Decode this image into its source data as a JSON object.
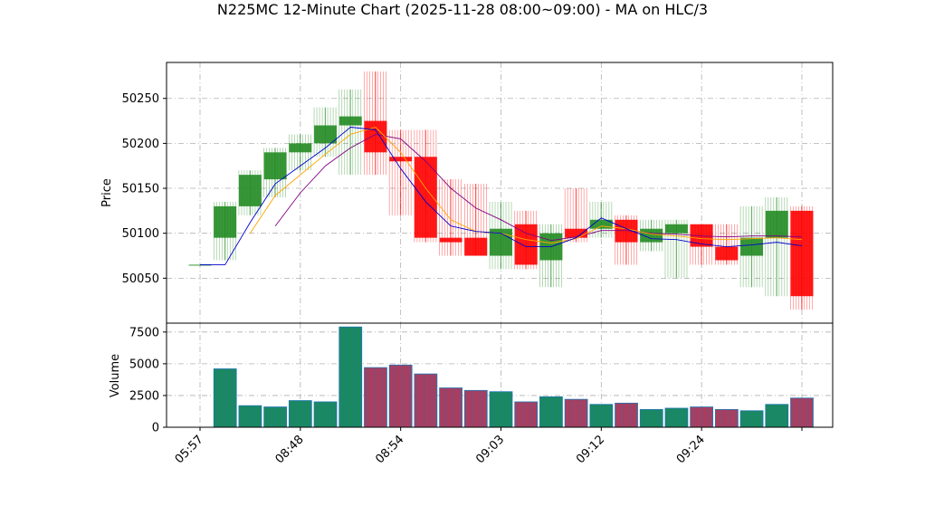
{
  "chart_data": {
    "type": "candlestick",
    "title": "N225MC 12-Minute Chart (2025-11-28 08:00~09:00) - MA on HLC/3",
    "price_panel": {
      "ylabel": "Price",
      "ylim": [
        50000,
        50290
      ],
      "yticks": [
        50050,
        50100,
        50150,
        50200,
        50250
      ]
    },
    "volume_panel": {
      "ylabel": "Volume",
      "ylim": [
        0,
        8200
      ],
      "yticks": [
        0,
        2500,
        5000,
        7500
      ],
      "yticklabels": [
        "0",
        "2500",
        "5000",
        "7500"
      ]
    },
    "xtick_labels": [
      "05:57",
      "08:48",
      "08:54",
      "09:03",
      "09:12",
      "09:24"
    ],
    "grid": true,
    "colors": {
      "up": "#228B22",
      "down": "#FF0000",
      "volume_edge": "#1f77b4",
      "ma_short": "#0000CD",
      "ma_mid": "#FFA500",
      "ma_long": "#800080",
      "grid": "#b0b0b0"
    },
    "candles": [
      {
        "open": 50065,
        "high": 50065,
        "low": 50065,
        "close": 50065,
        "volume": 0
      },
      {
        "open": 50095,
        "high": 50135,
        "low": 50070,
        "close": 50130,
        "volume": 4600
      },
      {
        "open": 50130,
        "high": 50170,
        "low": 50120,
        "close": 50165,
        "volume": 1700
      },
      {
        "open": 50160,
        "high": 50195,
        "low": 50140,
        "close": 50190,
        "volume": 1600
      },
      {
        "open": 50190,
        "high": 50210,
        "low": 50170,
        "close": 50200,
        "volume": 2100
      },
      {
        "open": 50200,
        "high": 50240,
        "low": 50185,
        "close": 50220,
        "volume": 2000
      },
      {
        "open": 50220,
        "high": 50260,
        "low": 50165,
        "close": 50230,
        "volume": 7900
      },
      {
        "open": 50225,
        "high": 50280,
        "low": 50165,
        "close": 50190,
        "volume": 4700
      },
      {
        "open": 50185,
        "high": 50215,
        "low": 50120,
        "close": 50180,
        "volume": 4900
      },
      {
        "open": 50185,
        "high": 50215,
        "low": 50090,
        "close": 50095,
        "volume": 4200
      },
      {
        "open": 50095,
        "high": 50160,
        "low": 50075,
        "close": 50090,
        "volume": 3100
      },
      {
        "open": 50095,
        "high": 50155,
        "low": 50075,
        "close": 50075,
        "volume": 2900
      },
      {
        "open": 50075,
        "high": 50135,
        "low": 50060,
        "close": 50105,
        "volume": 2800
      },
      {
        "open": 50110,
        "high": 50125,
        "low": 50060,
        "close": 50065,
        "volume": 2000
      },
      {
        "open": 50070,
        "high": 50110,
        "low": 50040,
        "close": 50100,
        "volume": 2400
      },
      {
        "open": 50105,
        "high": 50150,
        "low": 50090,
        "close": 50095,
        "volume": 2200
      },
      {
        "open": 50105,
        "high": 50135,
        "low": 50095,
        "close": 50115,
        "volume": 1800
      },
      {
        "open": 50115,
        "high": 50120,
        "low": 50065,
        "close": 50090,
        "volume": 1900
      },
      {
        "open": 50090,
        "high": 50115,
        "low": 50080,
        "close": 50105,
        "volume": 1400
      },
      {
        "open": 50100,
        "high": 50115,
        "low": 50050,
        "close": 50110,
        "volume": 1500
      },
      {
        "open": 50110,
        "high": 50110,
        "low": 50065,
        "close": 50085,
        "volume": 1600
      },
      {
        "open": 50085,
        "high": 50110,
        "low": 50065,
        "close": 50070,
        "volume": 1400
      },
      {
        "open": 50075,
        "high": 50130,
        "low": 50040,
        "close": 50095,
        "volume": 1300
      },
      {
        "open": 50095,
        "high": 50140,
        "low": 50030,
        "close": 50125,
        "volume": 1800
      },
      {
        "open": 50125,
        "high": 50130,
        "low": 50015,
        "close": 50030,
        "volume": 2300
      }
    ],
    "ma_short": [
      50065,
      50065,
      50112,
      50155,
      50175,
      50195,
      50218,
      50215,
      50172,
      50135,
      50108,
      50102,
      50100,
      50085,
      50085,
      50095,
      50117,
      50105,
      50094,
      50093,
      50088,
      50085,
      50087,
      50090,
      50086
    ],
    "ma_mid": [
      null,
      null,
      50100,
      50142,
      50165,
      50188,
      50210,
      50218,
      50190,
      50150,
      50115,
      50102,
      50100,
      50093,
      50089,
      50094,
      50108,
      50105,
      50099,
      50097,
      50094,
      50093,
      50094,
      50095,
      50093
    ],
    "ma_long": [
      null,
      null,
      null,
      50108,
      50145,
      50175,
      50195,
      50210,
      50205,
      50180,
      50150,
      50128,
      50115,
      50100,
      50092,
      50096,
      50103,
      50103,
      50100,
      50099,
      50097,
      50096,
      50097,
      50097,
      50096
    ]
  }
}
